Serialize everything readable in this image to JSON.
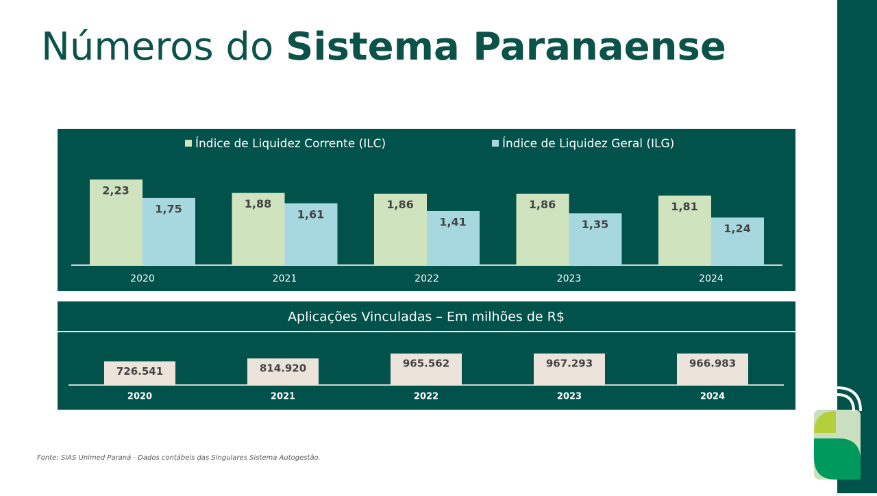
{
  "title": {
    "regular": "Números do",
    "bold": "Sistema Paranaense"
  },
  "chart_data": [
    {
      "type": "bar",
      "categories": [
        "2020",
        "2021",
        "2022",
        "2023",
        "2024"
      ],
      "series": [
        {
          "name": "Índice de Liquidez Corrente (ILC)",
          "color": "#cfe3bf",
          "values": [
            2.23,
            1.88,
            1.86,
            1.86,
            1.81
          ],
          "value_labels": [
            "2,23",
            "1,88",
            "1,86",
            "1,86",
            "1,81"
          ]
        },
        {
          "name": "Índice de Liquidez Geral (ILG)",
          "color": "#a8d8df",
          "values": [
            1.75,
            1.61,
            1.41,
            1.35,
            1.24
          ],
          "value_labels": [
            "1,75",
            "1,61",
            "1,41",
            "1,35",
            "1,24"
          ]
        }
      ]
    },
    {
      "type": "bar",
      "title": "Aplicações Vinculadas – Em milhões de R$",
      "categories": [
        "2020",
        "2021",
        "2022",
        "2023",
        "2024"
      ],
      "color": "#ece4da",
      "values": [
        726541,
        814920,
        965562,
        967293,
        966983
      ],
      "value_labels": [
        "726.541",
        "814.920",
        "965.562",
        "967.293",
        "966.983"
      ]
    }
  ],
  "footnote": "Fonte: SIAS Unimed Paraná - Dados contábeis das Singulares Sistema Autogestão."
}
